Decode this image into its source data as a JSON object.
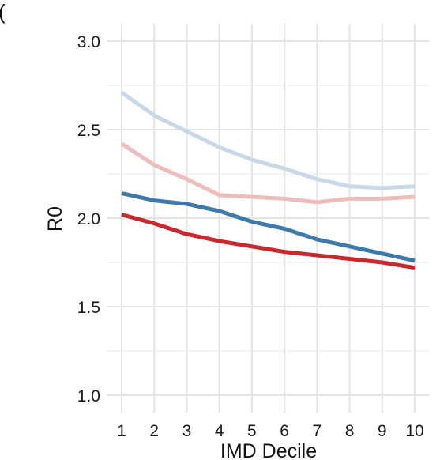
{
  "panel_label": "(",
  "chart_data": {
    "type": "line",
    "title": "",
    "xlabel": "IMD Decile",
    "ylabel": "R0",
    "x": [
      1,
      2,
      3,
      4,
      5,
      6,
      7,
      8,
      9,
      10
    ],
    "xlim": [
      1,
      10
    ],
    "ylim": [
      1.0,
      3.0
    ],
    "x_ticks": [
      "1",
      "2",
      "3",
      "4",
      "5",
      "6",
      "7",
      "8",
      "9",
      "10"
    ],
    "y_ticks": [
      "1.0",
      "1.5",
      "2.0",
      "2.5",
      "3.0"
    ],
    "grid": true,
    "legend": "none",
    "series": [
      {
        "color": "#c7d9e8",
        "values": [
          2.71,
          2.58,
          2.49,
          2.4,
          2.33,
          2.28,
          2.22,
          2.18,
          2.17,
          2.18
        ]
      },
      {
        "color": "#efbcbc",
        "values": [
          2.42,
          2.3,
          2.22,
          2.13,
          2.12,
          2.11,
          2.09,
          2.11,
          2.11,
          2.12
        ]
      },
      {
        "color": "#3d7aa9",
        "values": [
          2.14,
          2.1,
          2.08,
          2.04,
          1.98,
          1.94,
          1.88,
          1.84,
          1.8,
          1.76
        ]
      },
      {
        "color": "#c9282d",
        "values": [
          2.02,
          1.97,
          1.91,
          1.87,
          1.84,
          1.81,
          1.79,
          1.77,
          1.75,
          1.72
        ]
      }
    ]
  }
}
